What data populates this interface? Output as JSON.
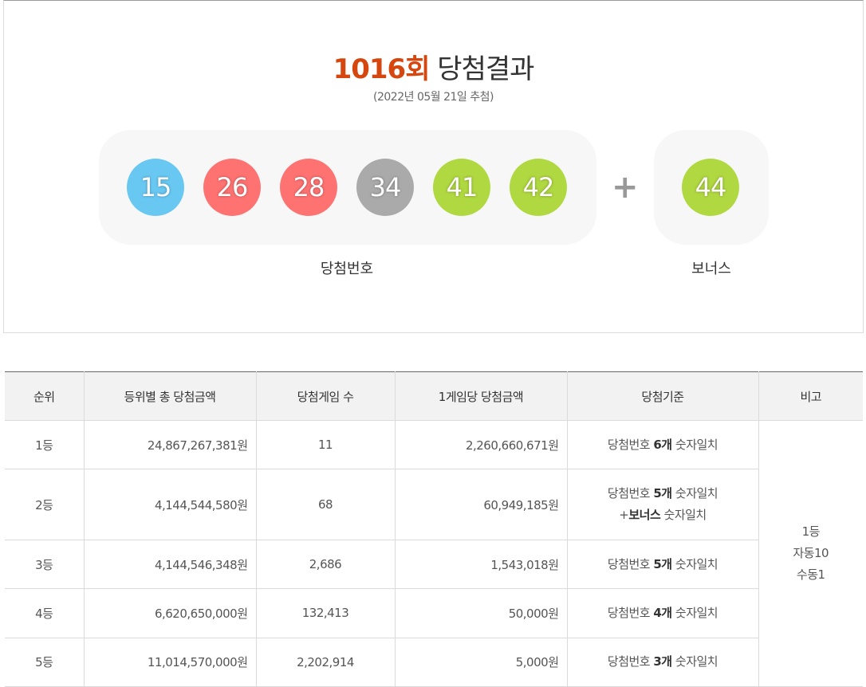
{
  "header": {
    "round": "1016",
    "round_suffix": "회",
    "title_suffix": "당첨결과",
    "draw_date": "(2022년 05월 21일 추첨)"
  },
  "winning_numbers": {
    "label": "당첨번호",
    "balls": [
      {
        "number": "15",
        "color": "#69c8f2"
      },
      {
        "number": "26",
        "color": "#ff7272"
      },
      {
        "number": "28",
        "color": "#ff7272"
      },
      {
        "number": "34",
        "color": "#aaaaaa"
      },
      {
        "number": "41",
        "color": "#b0d840"
      },
      {
        "number": "42",
        "color": "#b0d840"
      }
    ]
  },
  "plus_symbol": "+",
  "bonus": {
    "label": "보너스",
    "ball": {
      "number": "44",
      "color": "#b0d840"
    }
  },
  "table": {
    "headers": [
      "순위",
      "등위별 총 당첨금액",
      "당첨게임 수",
      "1게임당 당첨금액",
      "당첨기준",
      "비고"
    ],
    "rows": [
      {
        "rank": "1등",
        "total": "24,867,267,381원",
        "games": "11",
        "per_game": "2,260,660,671원",
        "criteria": [
          "당첨번호 ",
          "6개",
          " 숫자일치"
        ]
      },
      {
        "rank": "2등",
        "total": "4,144,544,580원",
        "games": "68",
        "per_game": "60,949,185원",
        "criteria": [
          "당첨번호 ",
          "5개",
          " 숫자일치"
        ],
        "criteria_line2": [
          "+",
          "보너스",
          " 숫자일치"
        ]
      },
      {
        "rank": "3등",
        "total": "4,144,546,348원",
        "games": "2,686",
        "per_game": "1,543,018원",
        "criteria": [
          "당첨번호 ",
          "5개",
          " 숫자일치"
        ]
      },
      {
        "rank": "4등",
        "total": "6,620,650,000원",
        "games": "132,413",
        "per_game": "50,000원",
        "criteria": [
          "당첨번호 ",
          "4개",
          " 숫자일치"
        ]
      },
      {
        "rank": "5등",
        "total": "11,014,570,000원",
        "games": "2,202,914",
        "per_game": "5,000원",
        "criteria": [
          "당첨번호 ",
          "3개",
          " 숫자일치"
        ]
      }
    ],
    "note": [
      "1등",
      "자동10",
      "수동1"
    ]
  },
  "colors": {
    "accent": "#d5470e",
    "panel_bg": "#f7f7f7",
    "header_bg": "#f2f2f2"
  }
}
